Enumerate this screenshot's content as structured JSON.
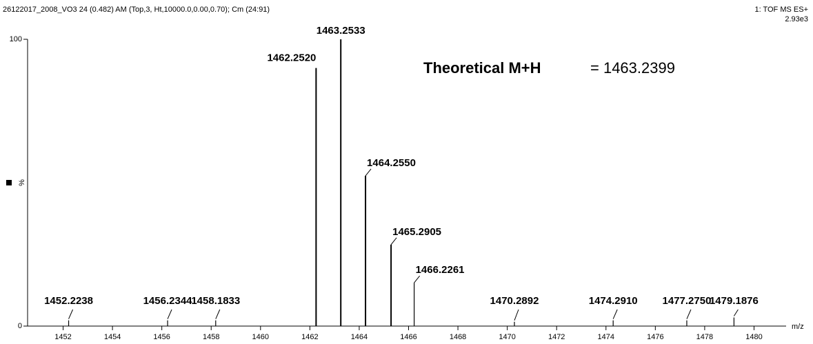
{
  "chart_data": {
    "type": "stick",
    "title": "26122017_2008_VO3 24 (0.482) AM (Top,3, Ht,10000.0,0.00,0.70); Cm (24:91)",
    "subtitle": "1: TOF MS ES+",
    "intensity_label": "2.93e3",
    "annotation": {
      "label": "Theoretical M+H",
      "text": "= 1463.2399"
    },
    "x_label": "m/z",
    "y_label": "%",
    "color": "#000000",
    "x": [
      1452.2238,
      1456.2344,
      1458.1833,
      1462.252,
      1463.2533,
      1464.255,
      1465.2905,
      1466.2261,
      1470.2892,
      1474.291,
      1477.275,
      1479.1876
    ],
    "peak_labels": [
      "1452.2238",
      "1456.2344",
      "1458.1833",
      "1462.2520",
      "1463.2533",
      "1464.2550",
      "1465.2905",
      "1466.2261",
      "1470.2892",
      "1474.2910",
      "1477.2750",
      "1479.1876"
    ],
    "values": [
      2,
      2,
      2,
      90,
      100,
      52.4,
      28.4,
      15.1,
      1.5,
      2,
      2,
      3
    ],
    "xlim": [
      1450.56,
      1481.3
    ],
    "xticks": [
      1452,
      1454,
      1456,
      1458,
      1460,
      1462,
      1464,
      1466,
      1468,
      1470,
      1472,
      1474,
      1476,
      1478,
      1480
    ],
    "ylim": [
      0,
      100
    ],
    "yticks": [
      0,
      100
    ]
  }
}
